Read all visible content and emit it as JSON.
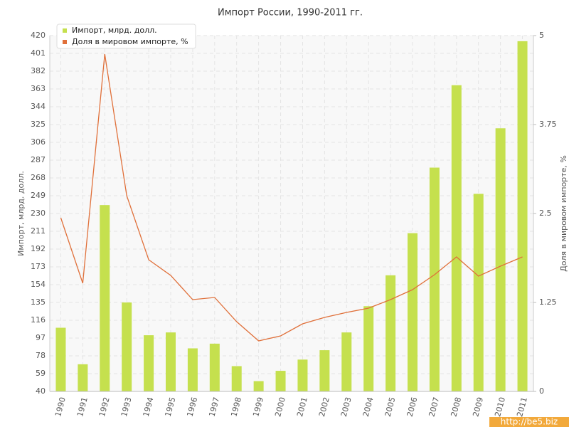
{
  "chart_data": {
    "type": "bar-line",
    "title": "Импорт России, 1990-2011 гг.",
    "y_label": "Импорт, млрд. долл.",
    "y2_label": "Доля в мировом импорте, %",
    "watermark": "http://be5.biz",
    "categories": [
      "1990",
      "1991",
      "1992",
      "1993",
      "1994",
      "1995",
      "1996",
      "1997",
      "1998",
      "1999",
      "2000",
      "2001",
      "2002",
      "2003",
      "2004",
      "2005",
      "2006",
      "2007",
      "2008",
      "2009",
      "2010",
      "2011"
    ],
    "series": [
      {
        "name": "Импорт, млрд. долл.",
        "type": "bar",
        "color": "#c5e04e",
        "values": [
          108,
          69,
          239,
          135,
          100,
          103,
          86,
          91,
          67,
          51,
          62,
          74,
          84,
          103,
          131,
          164,
          209,
          279,
          367,
          251,
          321,
          414
        ]
      },
      {
        "name": "Доля в мировом импорте, %",
        "type": "line",
        "axis": "y2",
        "color": "#e0703a",
        "values": [
          2.44,
          1.52,
          4.74,
          2.75,
          1.85,
          1.63,
          1.29,
          1.32,
          0.98,
          0.71,
          0.78,
          0.95,
          1.04,
          1.11,
          1.17,
          1.29,
          1.43,
          1.64,
          1.89,
          1.62,
          1.76,
          1.89
        ]
      }
    ],
    "ylim": [
      40,
      420
    ],
    "yticks": [
      40,
      59,
      78,
      97,
      116,
      135,
      154,
      173,
      192,
      211,
      230,
      249,
      268,
      287,
      306,
      325,
      344,
      363,
      382,
      401,
      420
    ],
    "y2lim": [
      0,
      5
    ],
    "y2ticks": [
      0,
      1.25,
      2.5,
      3.75,
      5
    ],
    "grid": true
  }
}
